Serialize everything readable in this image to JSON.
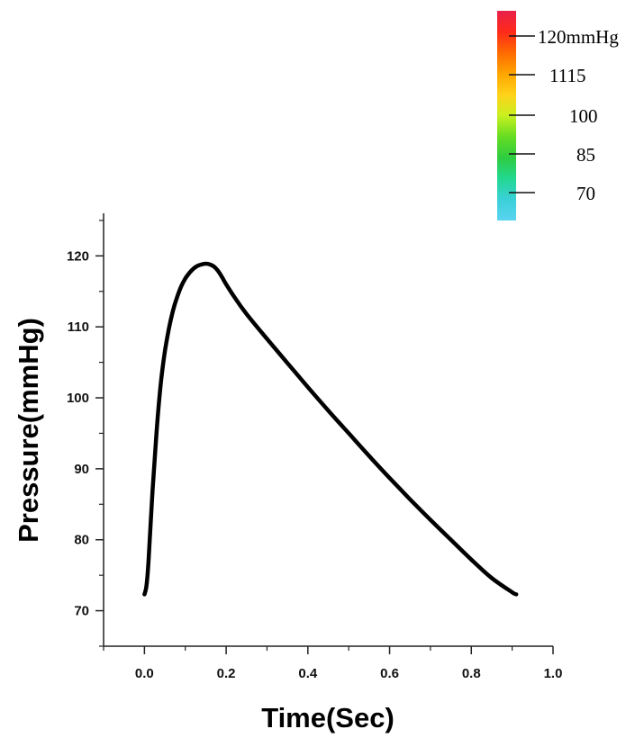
{
  "chart_data": {
    "type": "line",
    "title": "",
    "xlabel": "Time(Sec)",
    "ylabel": "Pressure(mmHg)",
    "xlim": [
      -0.1,
      1.0
    ],
    "ylim": [
      65,
      126
    ],
    "xticks": [
      0.0,
      0.2,
      0.4,
      0.6,
      0.8,
      1.0
    ],
    "xtick_labels": [
      "0.0",
      "0.2",
      "0.4",
      "0.6",
      "0.8",
      "1.0"
    ],
    "yticks": [
      70,
      80,
      90,
      100,
      110,
      120
    ],
    "ytick_labels": [
      "70",
      "80",
      "90",
      "100",
      "110",
      "120"
    ],
    "grid": false,
    "legend": "none",
    "series": [
      {
        "color": "#000000",
        "x": [
          0.0,
          0.005,
          0.01,
          0.02,
          0.03,
          0.04,
          0.05,
          0.06,
          0.07,
          0.08,
          0.09,
          0.1,
          0.11,
          0.12,
          0.13,
          0.14,
          0.15,
          0.16,
          0.17,
          0.18,
          0.19,
          0.2,
          0.22,
          0.25,
          0.3,
          0.35,
          0.4,
          0.45,
          0.5,
          0.55,
          0.6,
          0.65,
          0.7,
          0.75,
          0.8,
          0.85,
          0.9,
          0.91
        ],
        "y": [
          72.3,
          73.5,
          77.0,
          87.0,
          95.5,
          102.0,
          106.5,
          109.8,
          112.3,
          114.2,
          115.7,
          116.8,
          117.6,
          118.2,
          118.6,
          118.8,
          118.9,
          118.8,
          118.5,
          117.9,
          117.0,
          116.0,
          114.2,
          111.8,
          108.3,
          104.9,
          101.5,
          98.2,
          95.0,
          91.8,
          88.7,
          85.7,
          82.8,
          80.0,
          77.2,
          74.6,
          72.6,
          72.3
        ]
      }
    ]
  },
  "colorbar": {
    "labels": [
      "120mmHg",
      "1115",
      "100",
      "85",
      "70"
    ],
    "colors": [
      "#e8204a",
      "#ff2a1a",
      "#ff6a00",
      "#ffa500",
      "#ffd21a",
      "#c8f020",
      "#66dd22",
      "#2ecc40",
      "#22d890",
      "#3ad0d8",
      "#5ad4f0"
    ]
  }
}
